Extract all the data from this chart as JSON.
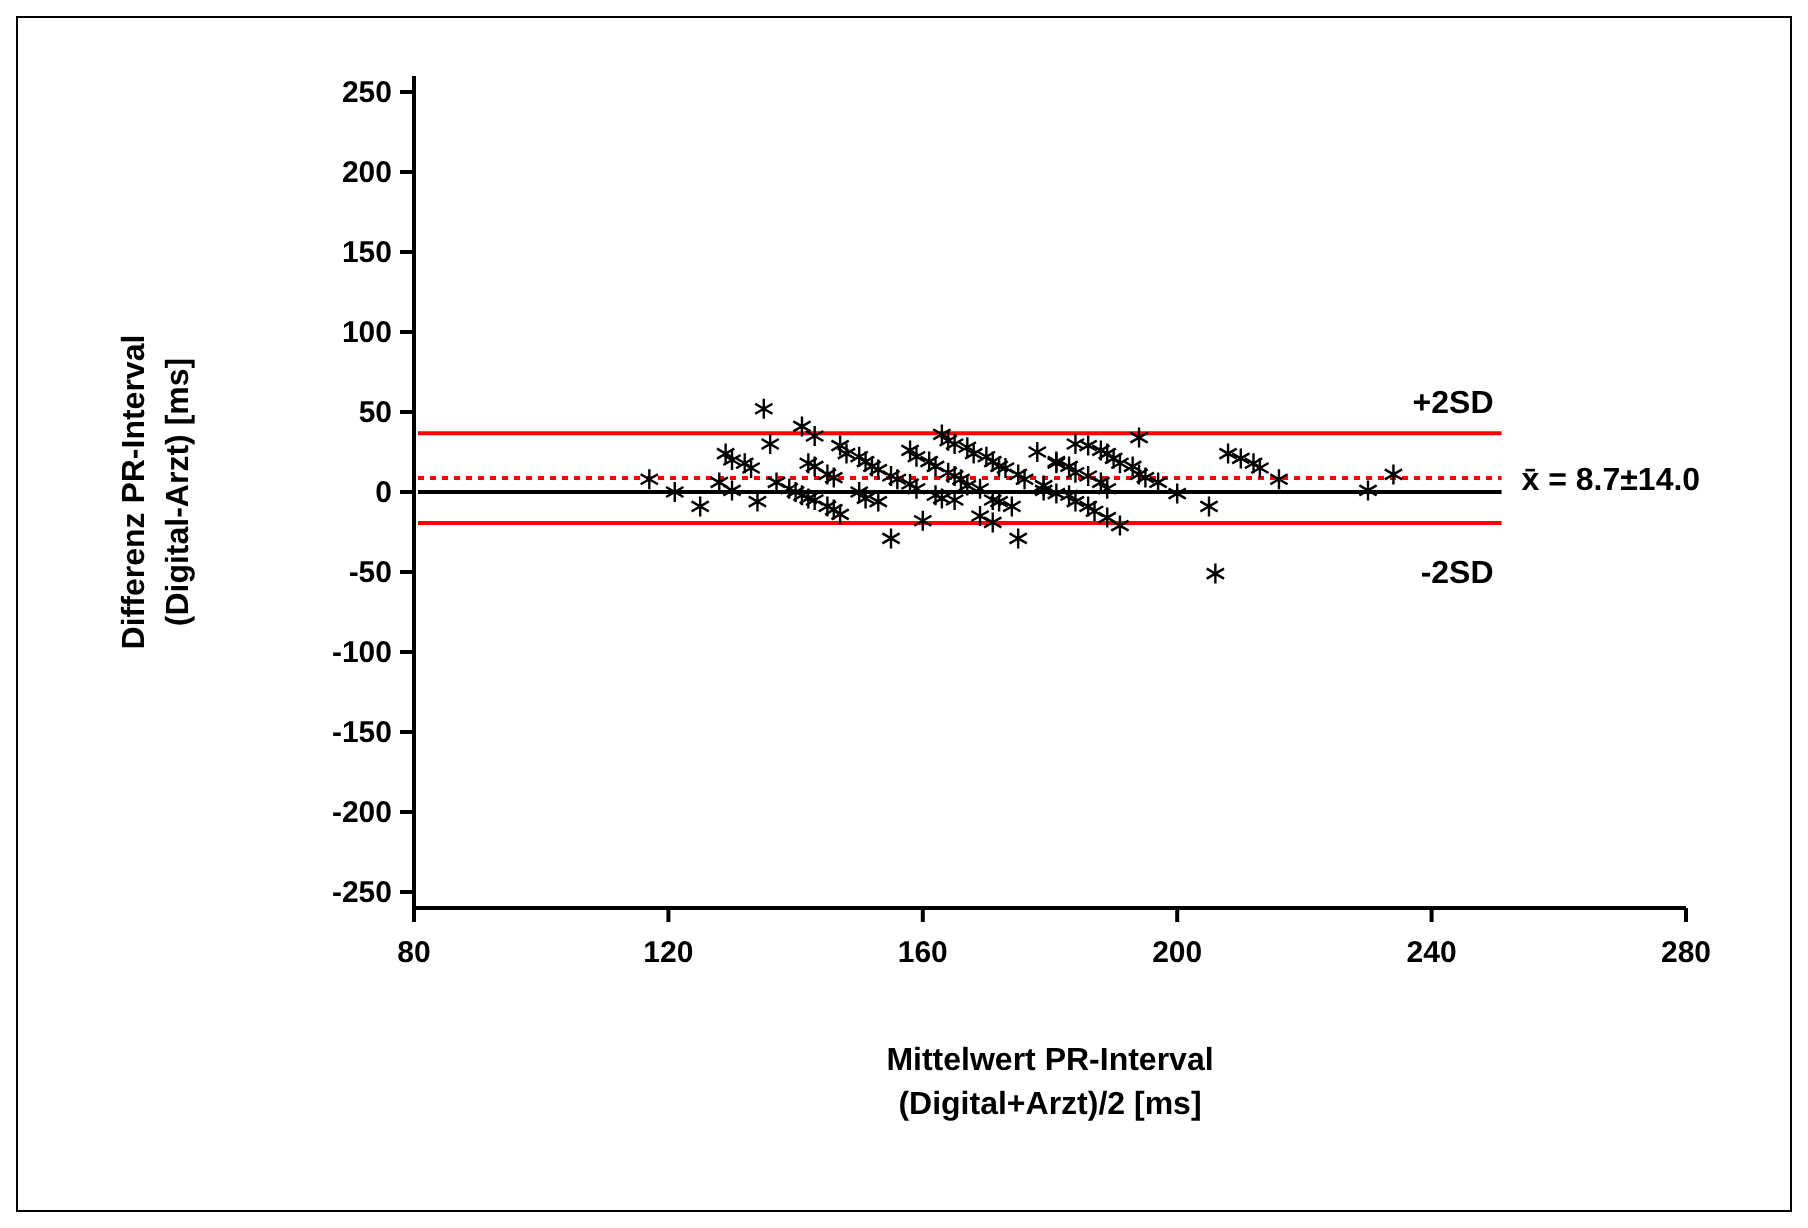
{
  "chart_data": {
    "type": "scatter",
    "xlabel": "Mittelwert PR-Interval\n(Digital+Arzt)/2 [ms]",
    "ylabel": "Differenz PR-Interval\n(Digital-Arzt) [ms]",
    "xlim": [
      80,
      280
    ],
    "xticks": [
      80,
      120,
      160,
      200,
      240,
      280
    ],
    "ylim": [
      -260,
      260
    ],
    "yticks": [
      -250,
      -200,
      -150,
      -100,
      -50,
      0,
      50,
      100,
      150,
      200,
      250
    ],
    "grid": false,
    "marker": "cross",
    "series": [
      {
        "color": "#000000",
        "x": [
          117,
          121,
          125,
          128,
          130,
          129,
          130,
          132,
          133,
          134,
          135,
          136,
          137,
          139,
          140,
          141,
          142,
          143,
          145,
          146,
          147,
          141,
          143,
          142,
          143,
          145,
          146,
          147,
          148,
          150,
          151,
          152,
          153,
          155,
          156,
          158,
          159,
          150,
          151,
          153,
          155,
          158,
          159,
          161,
          162,
          164,
          165,
          166,
          167,
          169,
          160,
          163,
          164,
          165,
          167,
          168,
          170,
          171,
          172,
          173,
          175,
          176,
          162,
          163,
          165,
          171,
          172,
          174,
          169,
          171,
          175,
          178,
          179,
          181,
          179,
          181,
          183,
          184,
          186,
          187,
          189,
          191,
          181,
          183,
          184,
          186,
          188,
          189,
          184,
          186,
          188,
          189,
          190,
          191,
          193,
          194,
          195,
          197,
          194,
          200,
          205,
          206,
          208,
          210,
          212,
          213,
          216,
          230,
          234
        ],
        "values": [
          8,
          0,
          -9,
          6,
          1,
          24,
          20,
          18,
          15,
          -6,
          52,
          30,
          6,
          2,
          0,
          -2,
          -4,
          -5,
          -9,
          -11,
          -14,
          41,
          35,
          18,
          16,
          11,
          9,
          29,
          24,
          22,
          19,
          16,
          14,
          10,
          8,
          5,
          2,
          0,
          -4,
          -6,
          -29,
          26,
          22,
          19,
          16,
          12,
          10,
          8,
          4,
          2,
          -18,
          36,
          32,
          30,
          28,
          24,
          22,
          19,
          16,
          15,
          11,
          8,
          -2,
          -4,
          -5,
          -5,
          -6,
          -9,
          -15,
          -19,
          -29,
          25,
          4,
          18,
          1,
          -1,
          -2,
          -6,
          -9,
          -12,
          -16,
          -21,
          19,
          16,
          12,
          10,
          6,
          2,
          30,
          29,
          26,
          24,
          21,
          18,
          16,
          11,
          9,
          6,
          34,
          -1,
          -9,
          -51,
          24,
          21,
          18,
          15,
          8,
          1,
          11
        ]
      }
    ],
    "ref_lines": [
      {
        "axis": "y",
        "value": 0,
        "color": "#000000",
        "line_style": "solid"
      },
      {
        "axis": "y",
        "value": 8.7,
        "color": "#ff0000",
        "line_style": "dotted",
        "label": "x̄ = 8.7±14.0"
      },
      {
        "axis": "y",
        "value": 36.7,
        "color": "#ff0000",
        "line_style": "solid",
        "label": "+2SD"
      },
      {
        "axis": "y",
        "value": -19.3,
        "color": "#ff0000",
        "line_style": "solid",
        "label": "-2SD"
      }
    ]
  }
}
